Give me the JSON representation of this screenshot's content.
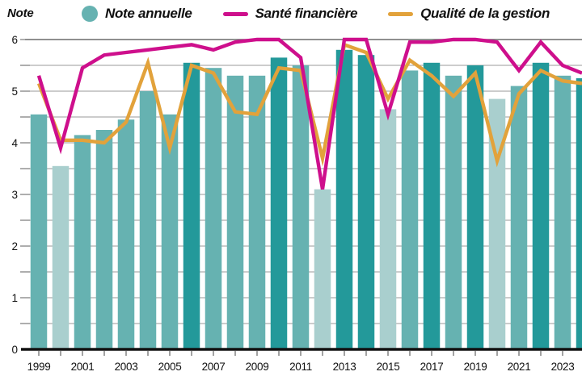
{
  "header": {
    "axis_title": "Note",
    "legend": [
      {
        "label": "Note annuelle",
        "swatch": "dot",
        "color": "#66b2b1"
      },
      {
        "label": "Santé financière",
        "swatch": "line",
        "color": "#ce0f8c"
      },
      {
        "label": "Qualité de la gestion",
        "swatch": "line",
        "color": "#e2a23b"
      }
    ]
  },
  "chart_data": {
    "type": "bar",
    "title": "",
    "xlabel": "",
    "ylabel": "Note",
    "ylim": [
      0,
      6
    ],
    "y_tick_labels": [
      "0",
      "1",
      "2",
      "3",
      "4",
      "5",
      "6"
    ],
    "gridline_step": 0.5,
    "grid": "on",
    "legend_position": "top",
    "categories": [
      1999,
      2000,
      2001,
      2002,
      2003,
      2004,
      2005,
      2006,
      2007,
      2008,
      2009,
      2010,
      2011,
      2012,
      2013,
      2014,
      2015,
      2016,
      2017,
      2018,
      2019,
      2020,
      2021,
      2022,
      2023
    ],
    "x_axis_labeled_years": [
      "1999",
      "2001",
      "2003",
      "2005",
      "2007",
      "2009",
      "2011",
      "2013",
      "2015",
      "2017",
      "2019",
      "2021",
      "2023"
    ],
    "series": [
      {
        "name": "Note annuelle",
        "type": "bar",
        "values": [
          4.55,
          3.55,
          4.15,
          4.25,
          4.45,
          5.0,
          4.55,
          5.55,
          5.45,
          5.3,
          5.3,
          5.65,
          5.5,
          3.1,
          5.8,
          5.7,
          4.65,
          5.4,
          5.55,
          5.3,
          5.5,
          4.85,
          5.1,
          5.55,
          5.3
        ],
        "shades": [
          "medium",
          "light",
          "medium",
          "medium",
          "medium",
          "medium",
          "medium",
          "dark",
          "medium",
          "medium",
          "medium",
          "dark",
          "medium",
          "light",
          "dark",
          "dark",
          "light",
          "medium",
          "dark",
          "medium",
          "dark",
          "light",
          "medium",
          "dark",
          "medium"
        ]
      },
      {
        "name": "Santé financière",
        "type": "line",
        "color": "#ce0f8c",
        "values": [
          5.3,
          3.9,
          5.45,
          5.7,
          5.75,
          5.8,
          5.85,
          5.9,
          5.8,
          5.95,
          6.0,
          6.0,
          5.65,
          3.1,
          6.0,
          6.0,
          4.55,
          5.95,
          5.95,
          6.0,
          6.0,
          5.95,
          5.4,
          5.95,
          5.5
        ],
        "edge_value": 5.35
      },
      {
        "name": "Qualité de la gestion",
        "type": "line",
        "color": "#e2a23b",
        "values": [
          5.15,
          4.05,
          4.05,
          4.0,
          4.4,
          5.55,
          3.9,
          5.5,
          5.35,
          4.6,
          4.55,
          5.45,
          5.4,
          3.7,
          5.9,
          5.75,
          4.85,
          5.6,
          5.3,
          4.9,
          5.35,
          3.65,
          4.95,
          5.4,
          5.2
        ],
        "edge_value": 5.15
      }
    ],
    "partial_edge_bar": {
      "value": 5.25,
      "shade": "dark"
    },
    "colors": {
      "bar_dark": "#23999a",
      "bar_medium": "#66b2b1",
      "bar_light": "#a9cfce",
      "gridline": "#9a9a9a",
      "top_gridline": "#6b6b6b",
      "axis": "#111111"
    }
  }
}
